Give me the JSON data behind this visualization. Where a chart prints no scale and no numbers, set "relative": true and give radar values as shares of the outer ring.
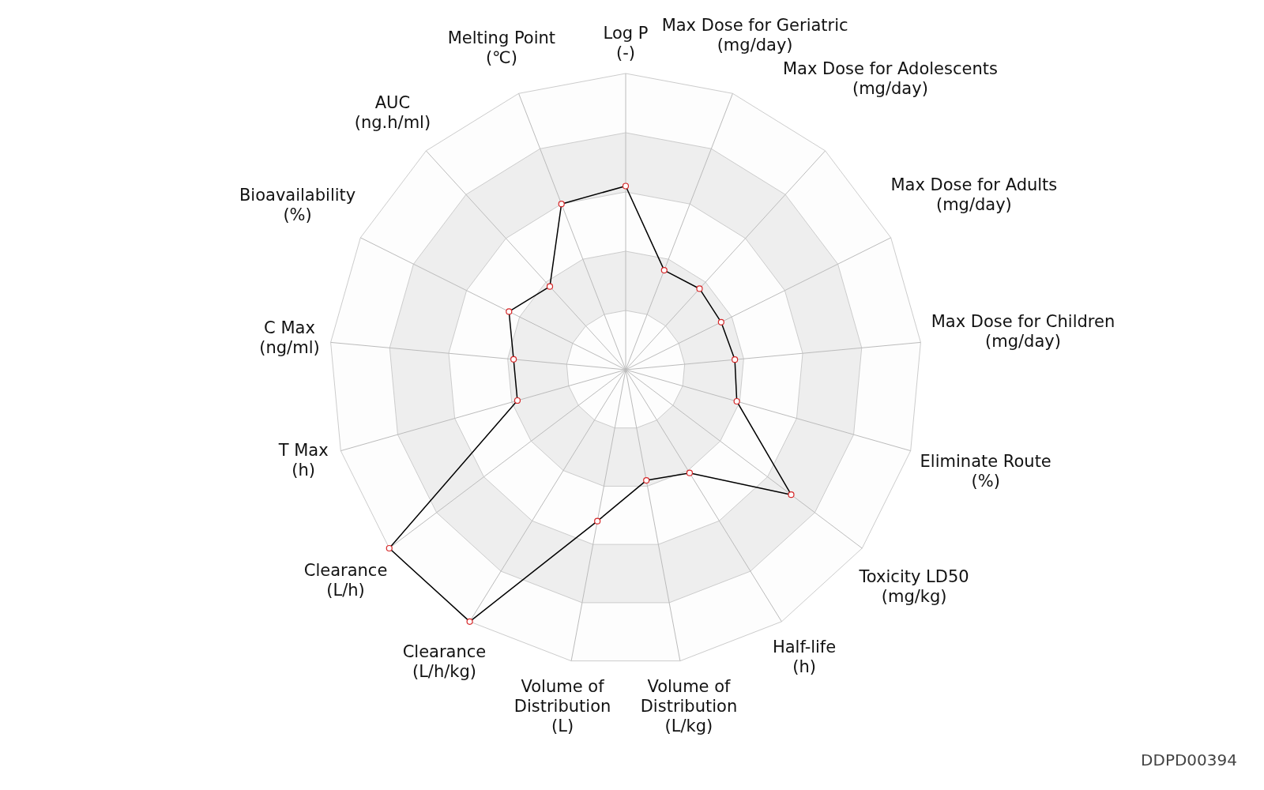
{
  "chart_data": {
    "type": "radar",
    "relative": true,
    "marker": "circle",
    "legend": false,
    "grid": true,
    "categories": [
      "Log P\n(-)",
      "Max Dose for Geriatric\n(mg/day)",
      "Max Dose for Adolescents\n(mg/day)",
      "Max Dose for Adults\n(mg/day)",
      "Max Dose for Children\n(mg/day)",
      "Eliminate Route\n(%)",
      "Toxicity LD50\n(mg/kg)",
      "Half-life\n(h)",
      "Volume of Distribution\n(L/kg)",
      "Volume of Distribution\n(L)",
      "Clearance\n(L/h/kg)",
      "Clearance\n(L/h)",
      "T Max\n(h)",
      "C Max\n(ng/ml)",
      "Bioavailability\n(%)",
      "AUC\n(ng.h/ml)",
      "Melting Point\n(℃)"
    ],
    "series": [
      {
        "color": "#000000",
        "values": [
          0.62,
          0.36,
          0.37,
          0.36,
          0.37,
          0.39,
          0.7,
          0.41,
          0.38,
          0.52,
          1.0,
          1.0,
          0.38,
          0.38,
          0.44,
          0.38,
          0.6
        ]
      }
    ],
    "annotations": [
      "DDPD00394"
    ]
  }
}
